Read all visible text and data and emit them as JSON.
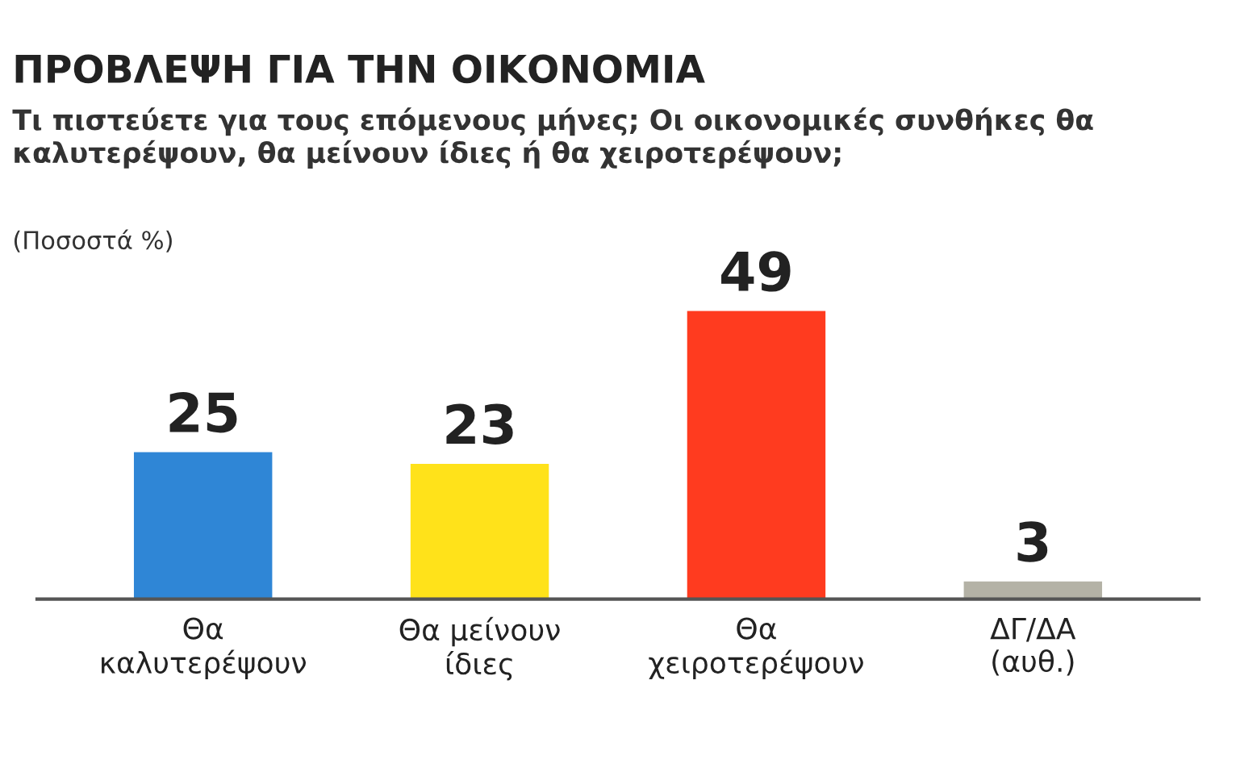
{
  "chart_data": {
    "type": "bar",
    "title": "ΠΡΟΒΛΕΨΗ ΓΙΑ ΤΗΝ ΟΙΚΟΝΟΜΙΑ",
    "subtitle": "Τι πιστεύετε για τους επόμενους μήνες; Οι οικονομικές συνθήκες θα καλυτερέψουν, θα μείνουν ίδιες ή θα χειροτερέψουν;",
    "ylabel": "(Ποσοστά %)",
    "categories": [
      "Θα\nκαλυτερέψουν",
      "Θα μείνουν\nίδιες",
      "Θα\nχειροτερέψουν",
      "ΔΓ/ΔΑ\n(αυθ.)"
    ],
    "values": [
      25,
      23,
      49,
      3
    ],
    "colors": [
      "#2f86d6",
      "#ffe21a",
      "#ff3b1f",
      "#b4b2a6"
    ],
    "data_labels": true,
    "grid": false,
    "legend": false
  }
}
